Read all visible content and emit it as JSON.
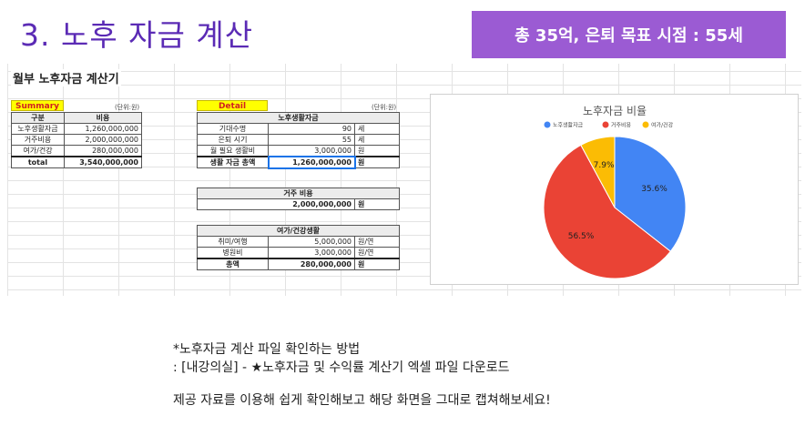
{
  "slide_title": "3. 노후 자금 계산",
  "banner": "총 35억, 은퇴 목표 시점  : 55세",
  "sheet": {
    "title": "월부 노후자금 계산기",
    "summary": {
      "label": "Summary",
      "unit": "(단위:원)",
      "headers": [
        "구분",
        "비용"
      ],
      "rows": [
        {
          "k": "노후생활자금",
          "v": "1,260,000,000"
        },
        {
          "k": "거주비용",
          "v": "2,000,000,000"
        },
        {
          "k": "여가/건강",
          "v": "280,000,000"
        }
      ],
      "total": {
        "k": "total",
        "v": "3,540,000,000"
      }
    },
    "detail": {
      "label": "Detail",
      "unit": "(단위:원)",
      "living": {
        "header": "노후생활자금",
        "rows": [
          {
            "k": "기대수명",
            "v": "90",
            "u": "세"
          },
          {
            "k": "은퇴 시기",
            "v": "55",
            "u": "세"
          },
          {
            "k": "월 필요 생활비",
            "v": "3,000,000",
            "u": "원"
          },
          {
            "k": "생활 자금 총액",
            "v": "1,260,000,000",
            "u": "원"
          }
        ]
      },
      "housing": {
        "header": "거주 비용",
        "value": "2,000,000,000",
        "u": "원"
      },
      "leisure": {
        "header": "여가/건강생활",
        "rows": [
          {
            "k": "취미/여행",
            "v": "5,000,000",
            "u": "원/연"
          },
          {
            "k": "병원비",
            "v": "3,000,000",
            "u": "원/연"
          },
          {
            "k": "총액",
            "v": "280,000,000",
            "u": "원"
          }
        ]
      }
    }
  },
  "chart_data": {
    "type": "pie",
    "title": "노후자금 비율",
    "legend_position": "top",
    "labels": [
      "노후생활자금",
      "거주비용",
      "여가/건강"
    ],
    "values": [
      35.6,
      56.5,
      7.9
    ],
    "value_labels": [
      "35.6%",
      "56.5%",
      "7.9%"
    ],
    "colors": [
      "#4285f4",
      "#ea4335",
      "#fbbc04"
    ]
  },
  "notes": {
    "line1": "*노후자금 계산 파일 확인하는 방법",
    "line2": ": [내강의실] - ★노후자금 및 수익률 계산기 엑셀 파일 다운로드",
    "line3": "제공 자료를 이용해 쉽게 확인해보고 해당 화면을 그대로 캡쳐해보세요!"
  }
}
